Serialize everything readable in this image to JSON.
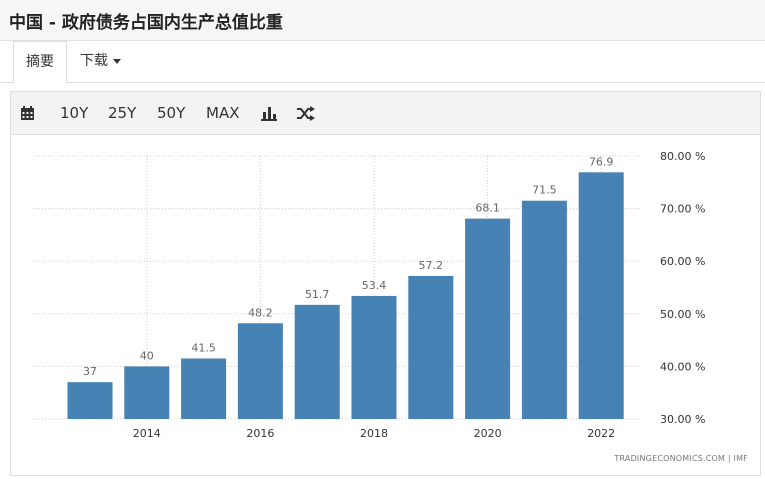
{
  "header": {
    "title": "中国 - 政府债务占国内生产总值比重"
  },
  "tabs": {
    "summary": "摘要",
    "download": "下载"
  },
  "toolbar": {
    "calendar_icon": "calendar-icon",
    "r10y": "10Y",
    "r25y": "25Y",
    "r50y": "50Y",
    "max": "MAX",
    "bar_icon": "bar-chart-icon",
    "shuffle_icon": "shuffle-icon"
  },
  "colors": {
    "bar": "#4682b4",
    "grid": "#cccccc",
    "label": "#666666"
  },
  "chart_data": {
    "type": "bar",
    "years": [
      2013,
      2014,
      2015,
      2016,
      2017,
      2018,
      2019,
      2020,
      2021,
      2022
    ],
    "values": [
      37,
      40,
      41.5,
      48.2,
      51.7,
      53.4,
      57.2,
      68.1,
      71.5,
      76.9
    ],
    "value_labels": [
      "37",
      "40",
      "41.5",
      "48.2",
      "51.7",
      "53.4",
      "57.2",
      "68.1",
      "71.5",
      "76.9"
    ],
    "x_ticks": [
      2014,
      2016,
      2018,
      2020,
      2022
    ],
    "x_tick_labels": [
      "2014",
      "2016",
      "2018",
      "2020",
      "2022"
    ],
    "y_ticks": [
      30,
      40,
      50,
      60,
      70,
      80
    ],
    "y_tick_labels": [
      "30.00 %",
      "40.00 %",
      "50.00 %",
      "60.00 %",
      "70.00 %",
      "80.00 %"
    ],
    "ylim": [
      30,
      80
    ],
    "y_axis_side": "right",
    "grid": true,
    "title": "",
    "xlabel": "",
    "ylabel": ""
  },
  "credit": "TRADINGECONOMICS.COM  |  IMF"
}
